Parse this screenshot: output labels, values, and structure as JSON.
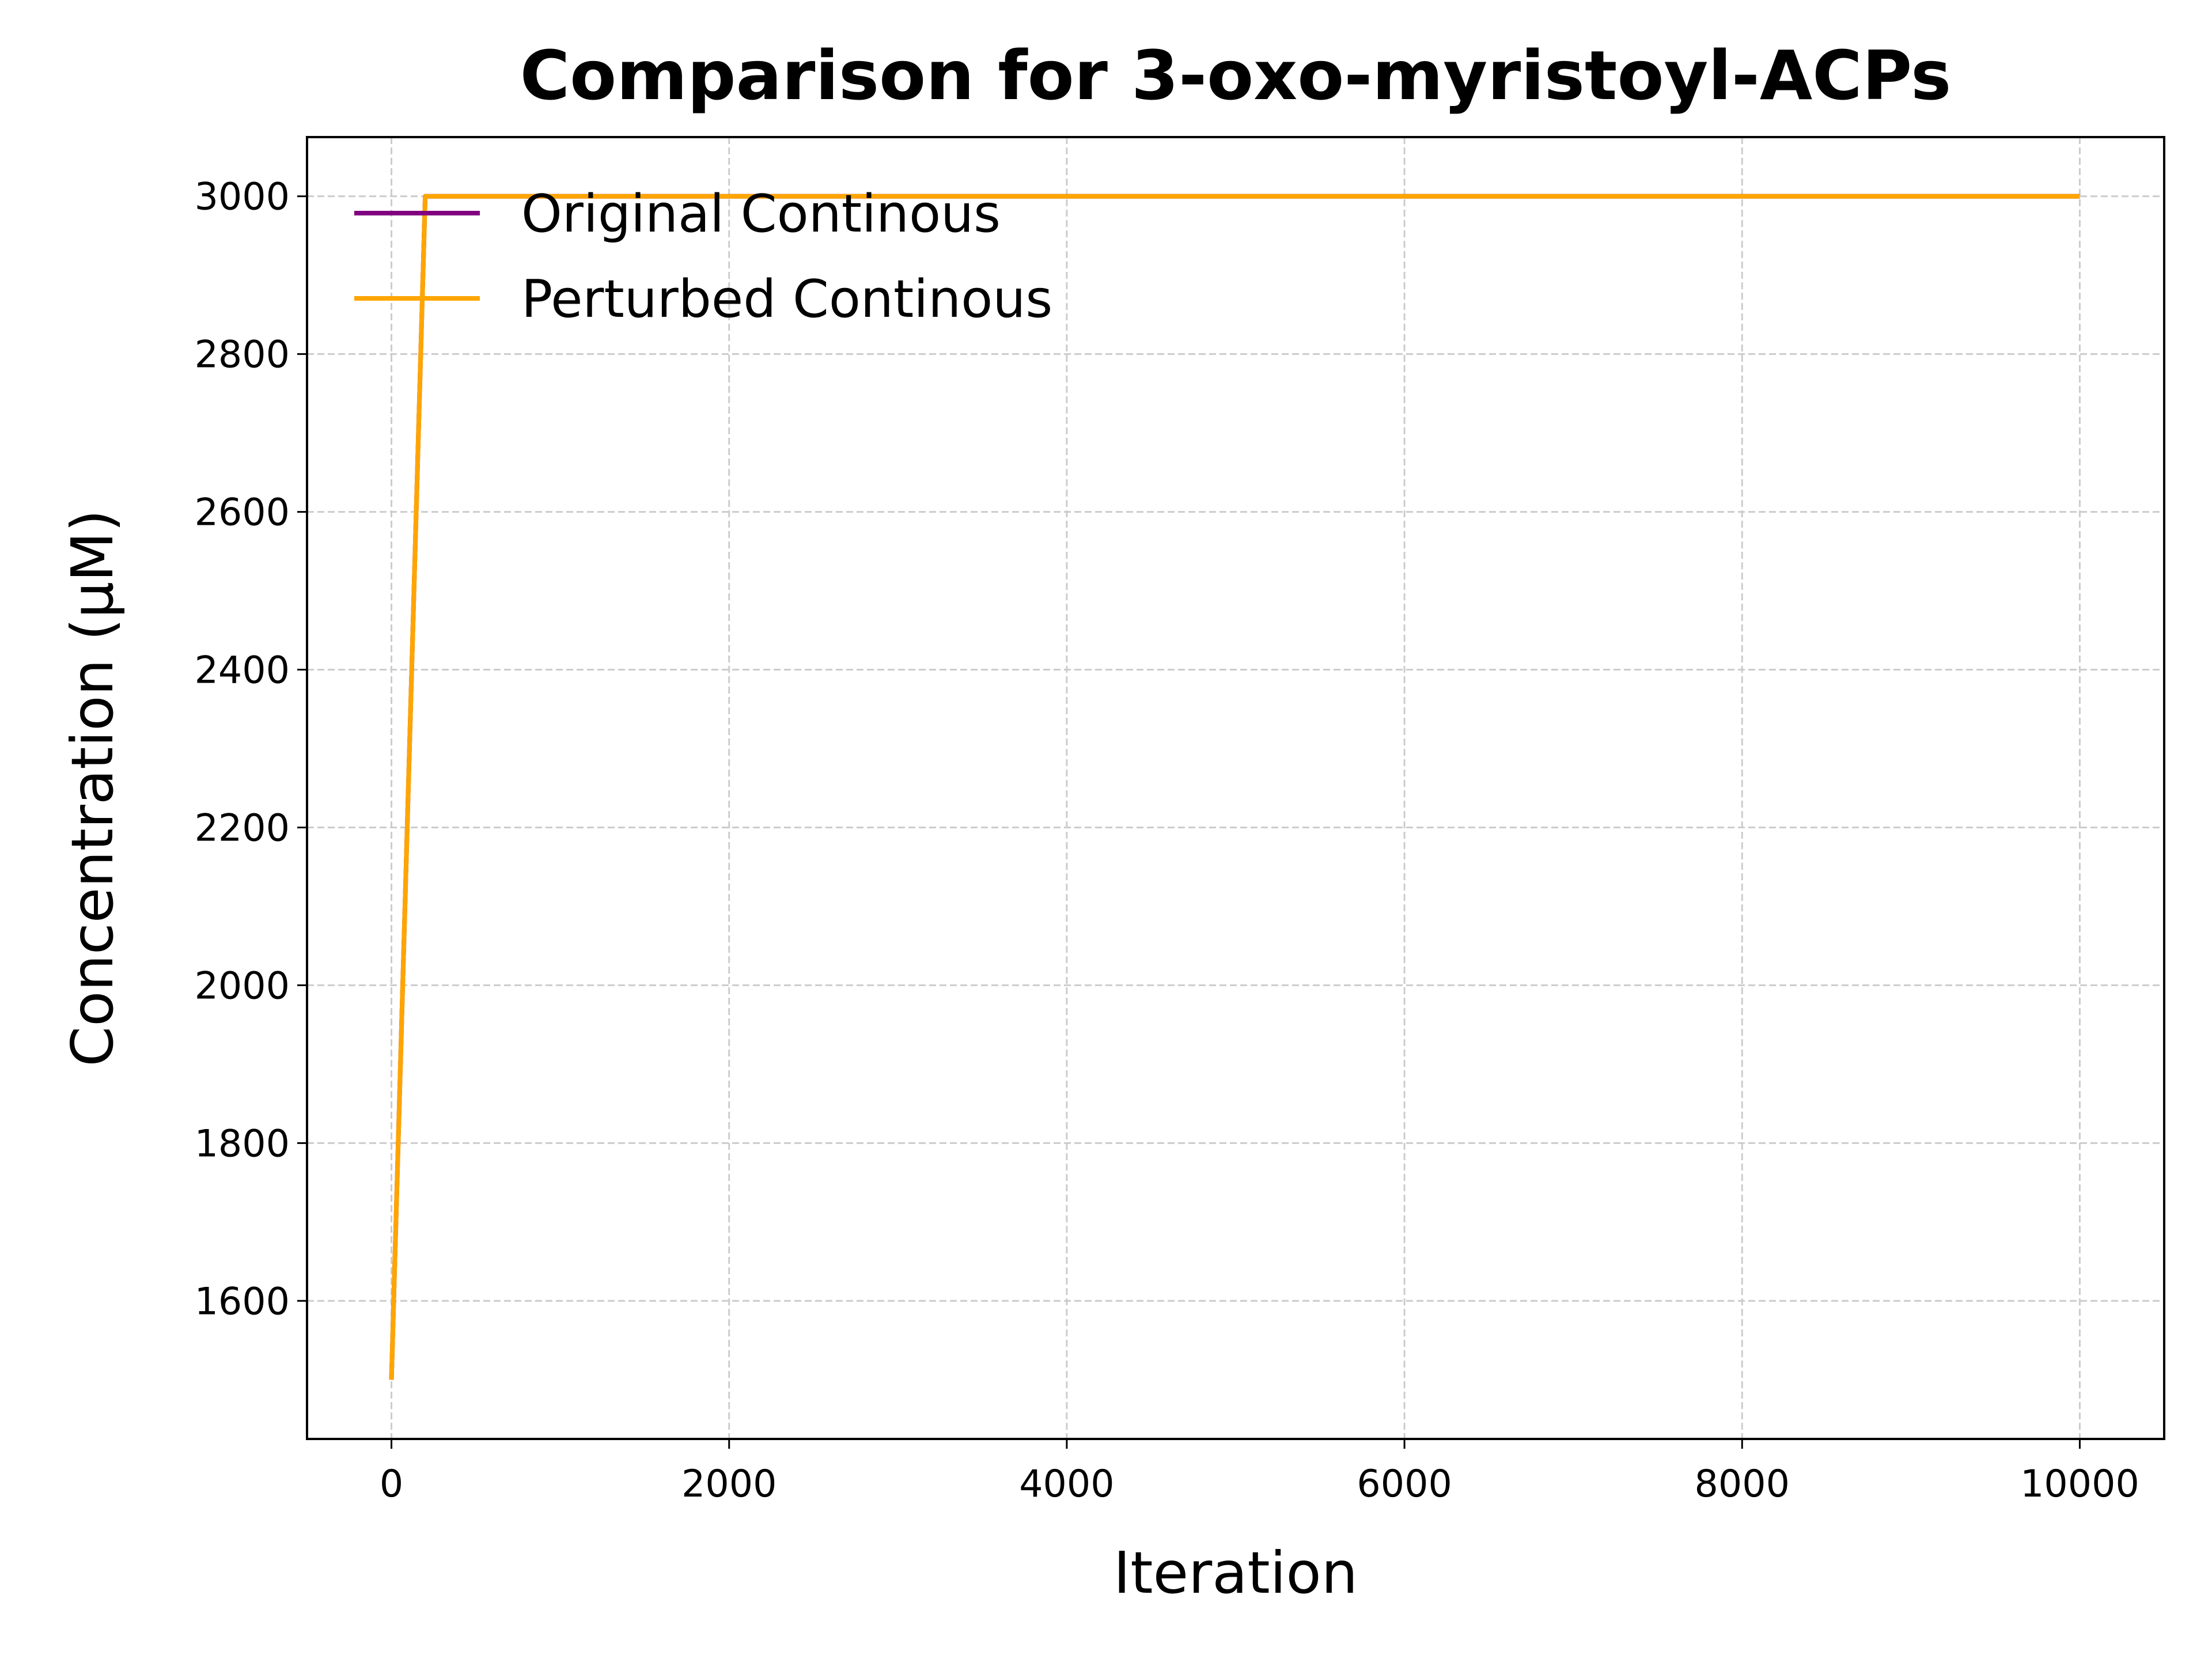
{
  "chart_data": {
    "type": "line",
    "title": "Comparison for 3-oxo-myristoyl-ACPs",
    "xlabel": "Iteration",
    "ylabel": "Concentration (μM)",
    "xlim": [
      -500,
      10500
    ],
    "ylim": [
      1425,
      3075
    ],
    "xticks": [
      0,
      2000,
      4000,
      6000,
      8000,
      10000
    ],
    "yticks": [
      1600,
      1800,
      2000,
      2200,
      2400,
      2600,
      2800,
      3000
    ],
    "grid": true,
    "legend_position": "upper-left",
    "series": [
      {
        "name": "Original Continous",
        "color": "#800080",
        "x": [
          0,
          200,
          10000
        ],
        "y": [
          1500,
          3000,
          3000
        ]
      },
      {
        "name": "Perturbed Continous",
        "color": "#FFA500",
        "x": [
          0,
          200,
          10000
        ],
        "y": [
          1500,
          3000,
          3000
        ]
      }
    ]
  }
}
